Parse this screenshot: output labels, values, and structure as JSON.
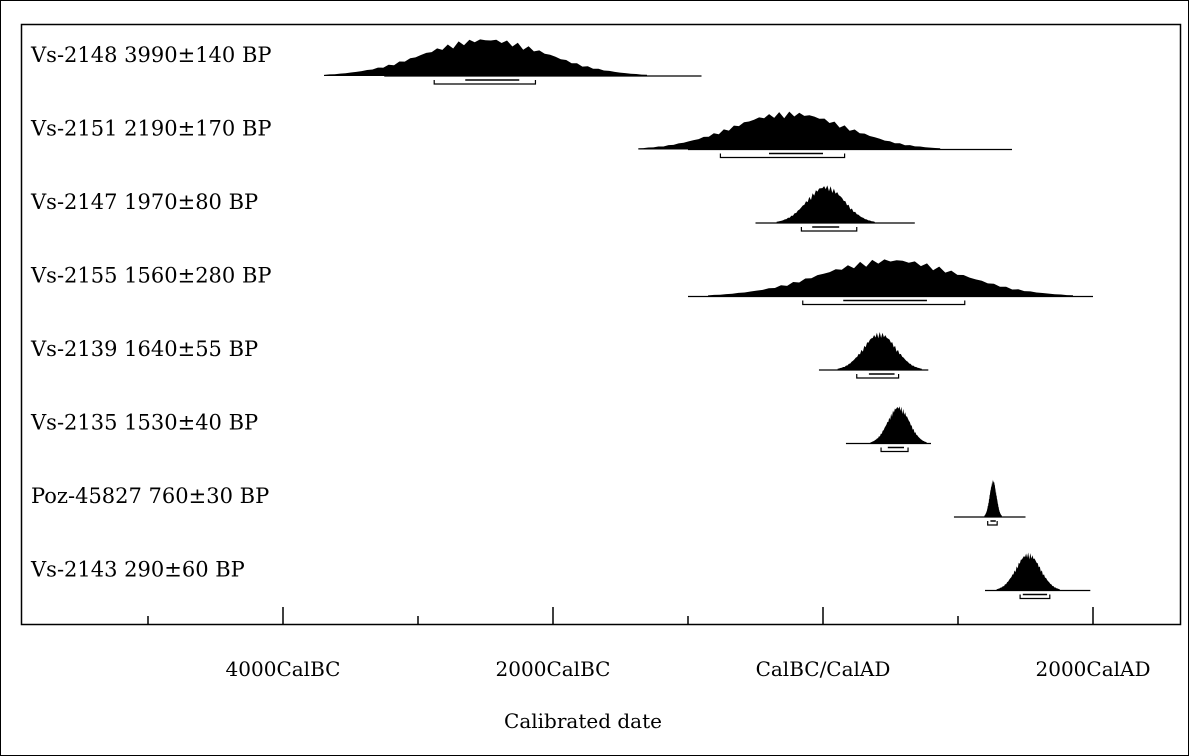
{
  "chart_data": {
    "type": "calibrated-date-ranges",
    "xlabel": "Calibrated date",
    "x_tick_labels": [
      "4000CalBC",
      "2000CalBC",
      "CalBC/CalAD",
      "2000CalAD"
    ],
    "x_ticks_major": [
      -4000,
      -2000,
      0,
      2000
    ],
    "x_ticks_minor": [
      -5000,
      -3000,
      -1000,
      1000
    ],
    "xlim": [
      -6000,
      2700
    ],
    "samples": [
      {
        "label": "Vs-2148 3990±140 BP",
        "range": [
          -3250,
          -900
        ],
        "peak": -2500,
        "width": 460,
        "sigma1": [
          -2880,
          -2130
        ],
        "sigma2": [
          -2650,
          -2250
        ]
      },
      {
        "label": "Vs-2151 2190±170 BP",
        "range": [
          -1000,
          1400
        ],
        "peak": -250,
        "width": 430,
        "sigma1": [
          -760,
          160
        ],
        "sigma2": [
          -400,
          0
        ]
      },
      {
        "label": "Vs-2147 1970±80 BP",
        "range": [
          -500,
          680
        ],
        "peak": 20,
        "width": 140,
        "sigma1": [
          -160,
          250
        ],
        "sigma2": [
          -80,
          120
        ]
      },
      {
        "label": "Vs-2155 1560±280 BP",
        "range": [
          -1000,
          2000
        ],
        "peak": 500,
        "width": 520,
        "sigma1": [
          -150,
          1050
        ],
        "sigma2": [
          150,
          770
        ]
      },
      {
        "label": "Vs-2139 1640±55 BP",
        "range": [
          -30,
          780
        ],
        "peak": 420,
        "width": 120,
        "sigma1": [
          250,
          560
        ],
        "sigma2": [
          340,
          530
        ]
      },
      {
        "label": "Vs-2135 1530±40 BP",
        "range": [
          170,
          800
        ],
        "peak": 560,
        "width": 80,
        "sigma1": [
          430,
          630
        ],
        "sigma2": [
          480,
          600
        ]
      },
      {
        "label": "Poz-45827 760±30 BP",
        "range": [
          970,
          1500
        ],
        "peak": 1260,
        "width": 25,
        "sigma1": [
          1220,
          1290
        ],
        "sigma2": [
          1240,
          1280
        ]
      },
      {
        "label": "Vs-2143 290±60 BP",
        "range": [
          1200,
          1980
        ],
        "peak": 1520,
        "width": 90,
        "sigma1": [
          1460,
          1680
        ],
        "sigma2": [
          1480,
          1660
        ]
      }
    ]
  }
}
